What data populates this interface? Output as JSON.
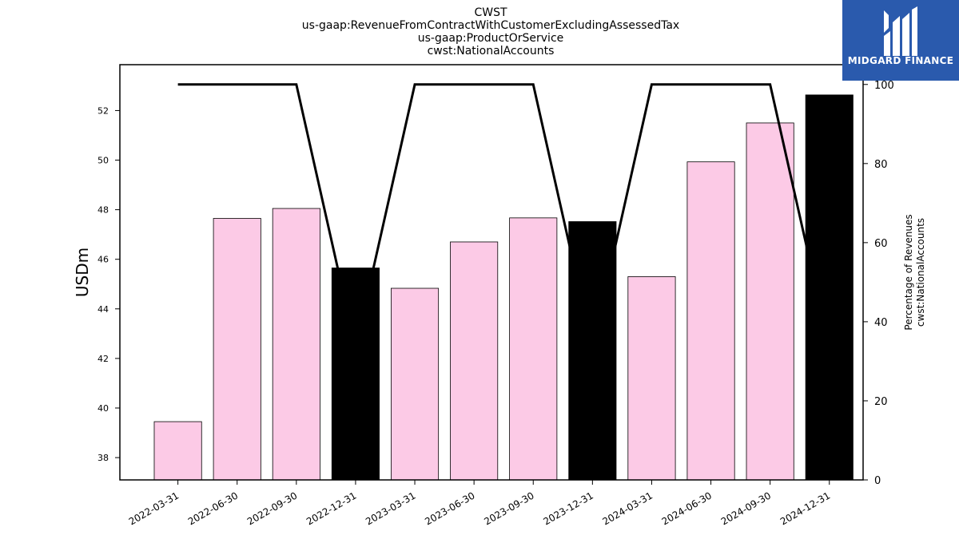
{
  "chart_data": {
    "type": "bar",
    "title_lines": [
      "CWST",
      "us-gaap:RevenueFromContractWithCustomerExcludingAssessedTax",
      "us-gaap:ProductOrService",
      "cwst:NationalAccounts"
    ],
    "ylabel": "USDm",
    "y2label_lines": [
      "Percentage of Revenues",
      "cwst:NationalAccounts"
    ],
    "categories": [
      "2022-03-31",
      "2022-06-30",
      "2022-09-30",
      "2022-12-31",
      "2023-03-31",
      "2023-06-30",
      "2023-09-30",
      "2023-12-31",
      "2024-03-31",
      "2024-06-30",
      "2024-09-30",
      "2024-12-31"
    ],
    "values": [
      39.45,
      47.65,
      48.05,
      45.65,
      44.83,
      46.7,
      47.67,
      47.52,
      45.3,
      49.93,
      51.5,
      52.63
    ],
    "percentages": [
      100,
      100,
      100,
      33.5,
      100,
      100,
      100,
      33.5,
      100,
      100,
      100,
      33.5
    ],
    "bar_colors": [
      "#fccae6",
      "#fccae6",
      "#fccae6",
      "#000000",
      "#fccae6",
      "#fccae6",
      "#fccae6",
      "#000000",
      "#fccae6",
      "#fccae6",
      "#fccae6",
      "#000000"
    ],
    "ylim": [
      37.1,
      53.85
    ],
    "y_ticks": [
      38,
      40,
      42,
      44,
      46,
      48,
      50,
      52
    ],
    "y2lim": [
      0,
      105
    ],
    "y2_ticks": [
      0,
      20,
      40,
      60,
      80,
      100
    ],
    "grid": false,
    "legend": "none"
  },
  "logo": {
    "text": "MIDGARD FINANCE",
    "color": "#2a5aad"
  }
}
